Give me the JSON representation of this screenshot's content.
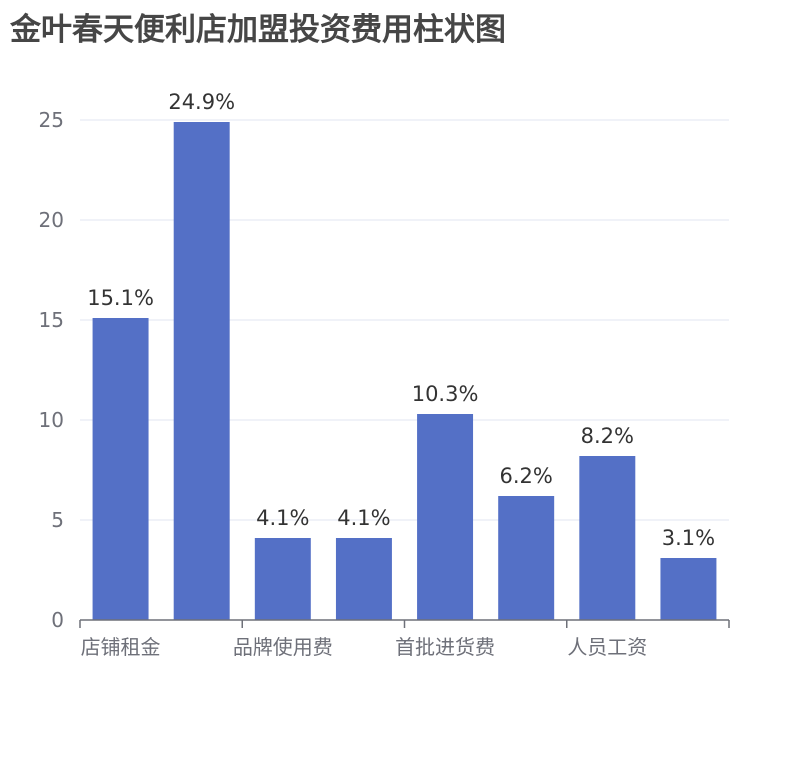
{
  "colors": {
    "bar": "#5470c6",
    "grid": "#e0e6f1",
    "axis": "#6e7079",
    "title": "#464646",
    "label": "#333333"
  },
  "chart_data": {
    "type": "bar",
    "title": "金叶春天便利店加盟投资费用柱状图",
    "xlabel": "",
    "ylabel": "",
    "ylim": [
      0,
      25
    ],
    "yticks": [
      0,
      5,
      10,
      15,
      20,
      25
    ],
    "grid": true,
    "categories": [
      "店铺租金",
      "",
      "品牌使用费",
      "",
      "首批进货费",
      "",
      "人员工资",
      ""
    ],
    "visible_category_labels": [
      "店铺租金",
      "品牌使用费",
      "首批进货费",
      "人员工资"
    ],
    "values": [
      15.1,
      24.9,
      4.1,
      4.1,
      10.3,
      6.2,
      8.2,
      3.1
    ],
    "value_labels": [
      "15.1%",
      "24.9%",
      "4.1%",
      "4.1%",
      "10.3%",
      "6.2%",
      "8.2%",
      "3.1%"
    ]
  }
}
